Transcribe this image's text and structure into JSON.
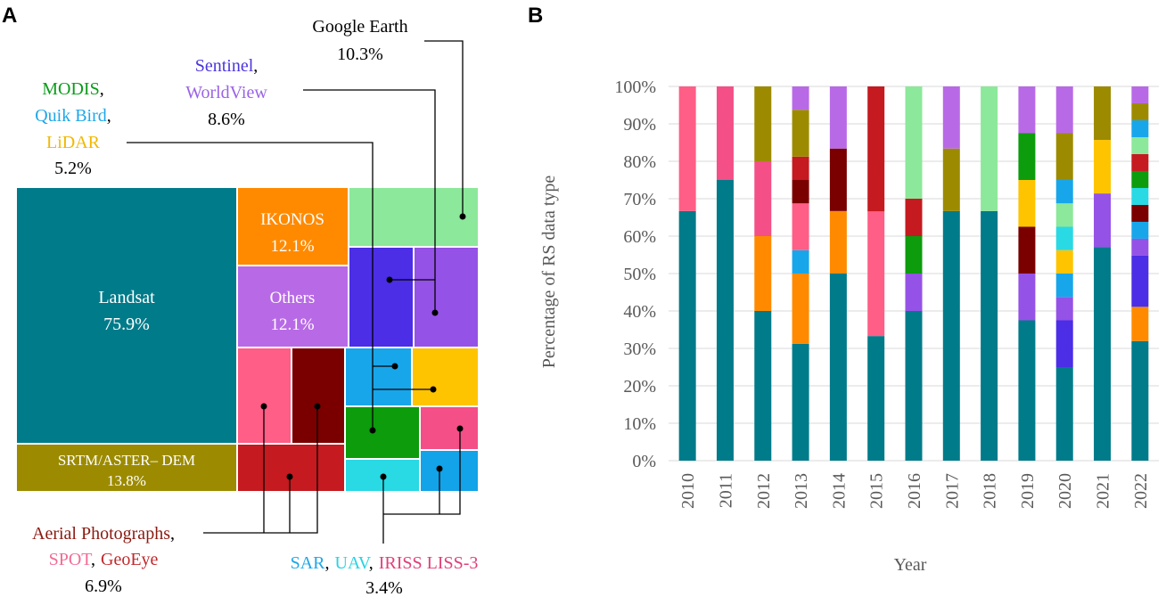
{
  "panels": {
    "a_label": "A",
    "b_label": "B"
  },
  "colors": {
    "landsat": "#007b8a",
    "dem": "#9c8b00",
    "ikonos": "#ff8a00",
    "others": "#b86ae6",
    "google_earth": "#8ce89a",
    "sentinel": "#4b2ee6",
    "worldview": "#9552e6",
    "quikbird": "#18a6ea",
    "lidar": "#ffc400",
    "modis": "#0c9c0c",
    "iriss": "#f44f86",
    "uav": "#29d9e4",
    "sar": "#12a3e8",
    "spot": "#ff5e86",
    "geoeye": "#c51a1f",
    "aerial": "#7a0000",
    "label_green": "#0b9c1a",
    "label_blue": "#1ea7e8",
    "label_gold": "#f2b800",
    "label_purple": "#4b35dd",
    "label_violet": "#9a63e6",
    "label_darkred": "#8b1a10",
    "label_pink": "#f06c95",
    "label_red": "#c0292b",
    "label_cyan": "#27d3e2",
    "label_magenta": "#e0407a"
  },
  "treemap": {
    "landsat": {
      "name": "Landsat",
      "pct": "75.9%"
    },
    "dem": {
      "name": "SRTM/ASTER– DEM",
      "pct": "13.8%"
    },
    "ikonos": {
      "name": "IKONOS",
      "pct": "12.1%"
    },
    "others": {
      "name": "Others",
      "pct": "12.1%"
    }
  },
  "callouts": {
    "google_earth": {
      "name": "Google Earth",
      "pct": "10.3%"
    },
    "sentinel": {
      "name1": "Sentinel",
      "sep": ",",
      "name2": "WorldView",
      "pct": "8.6%"
    },
    "modis": {
      "name1": "MODIS",
      "sep1": ",",
      "name2": "Quik Bird",
      "sep2": ",",
      "name3": "LiDAR",
      "pct": "5.2%"
    },
    "aerial": {
      "name1": "Aerial Photographs",
      "sep1": ",",
      "name2": "SPOT",
      "sep2": ",",
      "name3": "GeoEye",
      "pct": "6.9%"
    },
    "sar": {
      "name1": "SAR",
      "sep1": ",",
      "name2": "UAV",
      "sep2": ",",
      "name3": "IRISS LISS-3",
      "pct": "3.4%"
    }
  },
  "chart_data": {
    "type": "bar",
    "stacked": true,
    "title": "",
    "xlabel": "Year",
    "ylabel": "Percentage of RS data type",
    "ylim": [
      0,
      100
    ],
    "yticks": [
      "0%",
      "10%",
      "20%",
      "30%",
      "40%",
      "50%",
      "60%",
      "70%",
      "80%",
      "90%",
      "100%"
    ],
    "categories": [
      "2010",
      "2011",
      "2012",
      "2013",
      "2014",
      "2015",
      "2016",
      "2017",
      "2018",
      "2019",
      "2020",
      "2021",
      "2022"
    ],
    "segments": [
      [
        {
          "c": "landsat",
          "v": 66.7
        },
        {
          "c": "spot",
          "v": 33.3
        }
      ],
      [
        {
          "c": "landsat",
          "v": 75
        },
        {
          "c": "iriss",
          "v": 25
        }
      ],
      [
        {
          "c": "landsat",
          "v": 40
        },
        {
          "c": "ikonos",
          "v": 20
        },
        {
          "c": "iriss",
          "v": 20
        },
        {
          "c": "dem",
          "v": 20
        }
      ],
      [
        {
          "c": "landsat",
          "v": 31.25
        },
        {
          "c": "ikonos",
          "v": 18.75
        },
        {
          "c": "quikbird",
          "v": 6.25
        },
        {
          "c": "spot",
          "v": 12.5
        },
        {
          "c": "aerial",
          "v": 6.25
        },
        {
          "c": "geoeye",
          "v": 6.25
        },
        {
          "c": "dem",
          "v": 12.5
        },
        {
          "c": "others",
          "v": 6.25
        }
      ],
      [
        {
          "c": "landsat",
          "v": 50
        },
        {
          "c": "ikonos",
          "v": 16.7
        },
        {
          "c": "aerial",
          "v": 16.7
        },
        {
          "c": "others",
          "v": 16.6
        }
      ],
      [
        {
          "c": "landsat",
          "v": 33.3
        },
        {
          "c": "spot",
          "v": 33.3
        },
        {
          "c": "geoeye",
          "v": 33.4
        }
      ],
      [
        {
          "c": "landsat",
          "v": 40
        },
        {
          "c": "worldview",
          "v": 10
        },
        {
          "c": "modis",
          "v": 10
        },
        {
          "c": "geoeye",
          "v": 10
        },
        {
          "c": "google_earth",
          "v": 30
        }
      ],
      [
        {
          "c": "landsat",
          "v": 66.7
        },
        {
          "c": "dem",
          "v": 16.7
        },
        {
          "c": "others",
          "v": 16.6
        }
      ],
      [
        {
          "c": "landsat",
          "v": 66.7
        },
        {
          "c": "google_earth",
          "v": 33.3
        }
      ],
      [
        {
          "c": "landsat",
          "v": 37.5
        },
        {
          "c": "worldview",
          "v": 12.5
        },
        {
          "c": "aerial",
          "v": 12.5
        },
        {
          "c": "lidar",
          "v": 12.5
        },
        {
          "c": "modis",
          "v": 12.5
        },
        {
          "c": "others",
          "v": 12.5
        }
      ],
      [
        {
          "c": "landsat",
          "v": 25
        },
        {
          "c": "sentinel",
          "v": 12.5
        },
        {
          "c": "worldview",
          "v": 6.25
        },
        {
          "c": "quikbird",
          "v": 6.25
        },
        {
          "c": "lidar",
          "v": 6.25
        },
        {
          "c": "uav",
          "v": 6.25
        },
        {
          "c": "google_earth",
          "v": 6.25
        },
        {
          "c": "quikbird",
          "v": 6.25
        },
        {
          "c": "dem",
          "v": 12.5
        },
        {
          "c": "others",
          "v": 12.5
        }
      ],
      [
        {
          "c": "landsat",
          "v": 57.1
        },
        {
          "c": "worldview",
          "v": 14.3
        },
        {
          "c": "lidar",
          "v": 14.3
        },
        {
          "c": "dem",
          "v": 14.3
        }
      ],
      [
        {
          "c": "landsat",
          "v": 31.8
        },
        {
          "c": "ikonos",
          "v": 9.1
        },
        {
          "c": "sentinel",
          "v": 13.6
        },
        {
          "c": "worldview",
          "v": 4.5
        },
        {
          "c": "quikbird",
          "v": 4.5
        },
        {
          "c": "aerial",
          "v": 4.5
        },
        {
          "c": "uav",
          "v": 4.5
        },
        {
          "c": "modis",
          "v": 4.5
        },
        {
          "c": "geoeye",
          "v": 4.5
        },
        {
          "c": "google_earth",
          "v": 4.5
        },
        {
          "c": "quikbird",
          "v": 4.5
        },
        {
          "c": "dem",
          "v": 4.5
        },
        {
          "c": "others",
          "v": 4.5
        }
      ]
    ]
  }
}
